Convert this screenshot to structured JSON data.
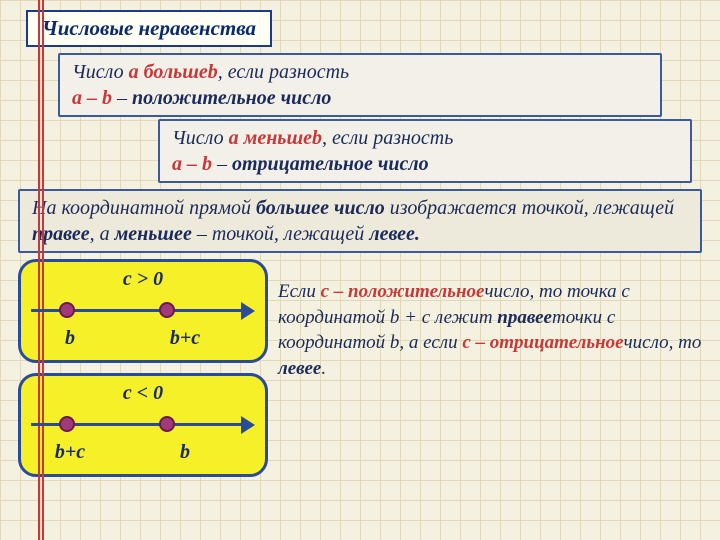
{
  "title": "Числовые неравенства",
  "rule1": {
    "t1": "Число ",
    "a": "a больше",
    "b": "b",
    "t2": ", если разность",
    "expr": "a – b",
    "t3": " – ",
    "pos": "положительное число"
  },
  "rule2": {
    "t1": "Число ",
    "a": "a меньше",
    "b": "b",
    "t2": ", если разность",
    "expr": "a – b",
    "t3": " – ",
    "neg": "отрицательное число"
  },
  "rule3": {
    "t1": "На координатной прямой ",
    "b1": "большее число",
    "t2": " изображается точкой, лежащей ",
    "b2": "правее",
    "t3": ", а ",
    "b3": "меньшее",
    "t4": " – точкой, лежащей ",
    "b4": "левее."
  },
  "diag": {
    "c_pos": "c > 0",
    "c_neg": "c < 0",
    "lbl_b": "b",
    "lbl_bpc": "b+c"
  },
  "explain": {
    "t1": "Если ",
    "h1": "с – положительное",
    "t2": "число, то точка с координатой b + c лежит ",
    "b1": "правее",
    "t3": "точки с координатой b, а если ",
    "h2": "с – отрицательное",
    "t4": "число, то ",
    "b2": "левее",
    "t5": "."
  },
  "colors": {
    "frame_border": "#1a3a8a",
    "highlight": "#c73838",
    "box_bg": "#f5f028",
    "axis": "#2a4a9a",
    "dot": "#a13a7a"
  }
}
